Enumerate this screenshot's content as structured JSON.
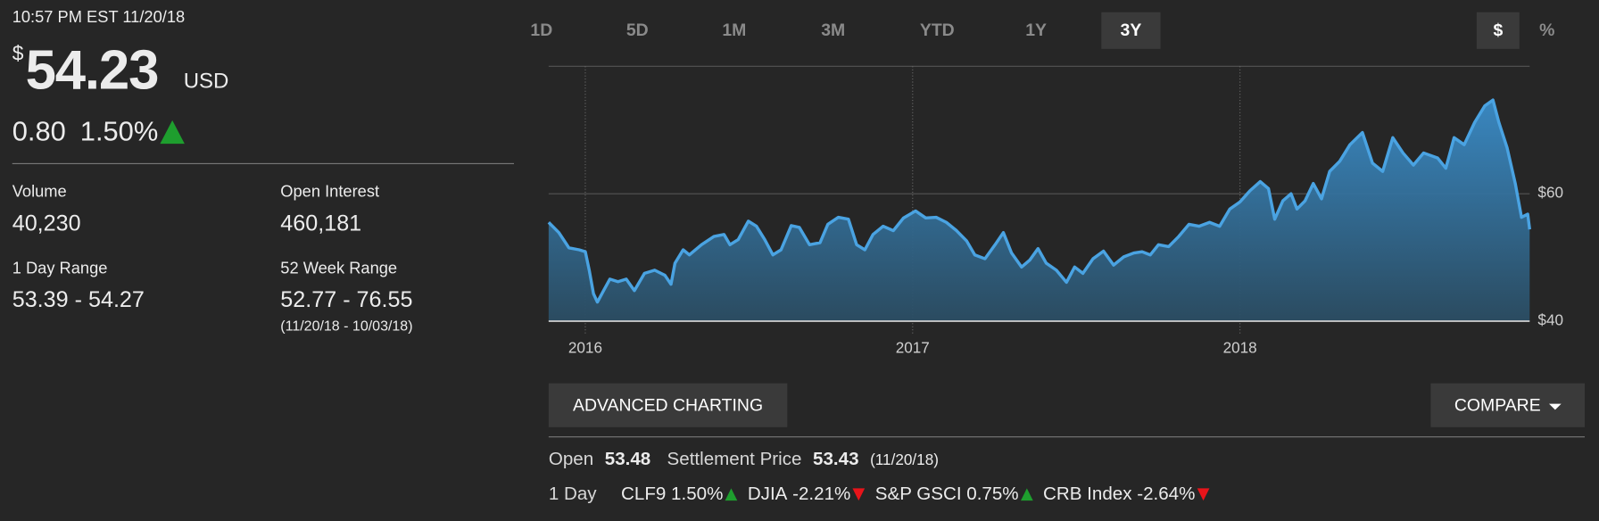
{
  "quote": {
    "timestamp": "10:57 PM EST 11/20/18",
    "currency_symbol": "$",
    "price": "54.23",
    "currency": "USD",
    "change": "0.80",
    "change_percent": "1.50%",
    "direction": "up"
  },
  "stats": [
    {
      "label": "Volume",
      "value": "40,230"
    },
    {
      "label": "Open Interest",
      "value": "460,181"
    },
    {
      "label": "1 Day Range",
      "value": "53.39 - 54.27"
    },
    {
      "label": "52 Week Range",
      "value": "52.77 - 76.55",
      "note": "(11/20/18 - 10/03/18)"
    }
  ],
  "range_tabs": {
    "items": [
      "1D",
      "5D",
      "1M",
      "3M",
      "YTD",
      "1Y",
      "3Y"
    ],
    "selected": 6
  },
  "unit_tabs": {
    "items": [
      "$",
      "%"
    ],
    "selected": 0
  },
  "chart_data": {
    "type": "area",
    "xlim": [
      2015.888,
      2018.885
    ],
    "xticks": [
      2016,
      2017,
      2018
    ],
    "ylim": [
      40,
      80
    ],
    "yticks": [
      {
        "value": 60,
        "label": "$60"
      },
      {
        "value": 40,
        "label": "$40"
      }
    ],
    "series": [
      {
        "color": "#4aa3e2",
        "x": [
          2015.888,
          2015.919,
          2015.95,
          2015.981,
          2016.0,
          2016.012,
          2016.025,
          2016.037,
          2016.056,
          2016.075,
          2016.1,
          2016.125,
          2016.15,
          2016.181,
          2016.212,
          2016.243,
          2016.262,
          2016.274,
          2016.299,
          2016.318,
          2016.355,
          2016.393,
          2016.424,
          2016.442,
          2016.467,
          2016.498,
          2016.523,
          2016.548,
          2016.573,
          2016.598,
          2016.629,
          2016.654,
          2016.685,
          2016.717,
          2016.741,
          2016.773,
          2016.804,
          2016.829,
          2016.854,
          2016.879,
          2016.91,
          2016.941,
          2016.972,
          2017.009,
          2017.04,
          2017.072,
          2017.103,
          2017.134,
          2017.165,
          2017.19,
          2017.221,
          2017.252,
          2017.277,
          2017.302,
          2017.333,
          2017.358,
          2017.383,
          2017.408,
          2017.439,
          2017.47,
          2017.495,
          2017.52,
          2017.551,
          2017.583,
          2017.614,
          2017.645,
          2017.676,
          2017.701,
          2017.726,
          2017.751,
          2017.782,
          2017.813,
          2017.844,
          2017.875,
          2017.907,
          2017.938,
          2017.969,
          2018.0,
          2018.031,
          2018.062,
          2018.087,
          2018.106,
          2018.131,
          2018.156,
          2018.174,
          2018.199,
          2018.224,
          2018.249,
          2018.274,
          2018.305,
          2018.336,
          2018.374,
          2018.405,
          2018.436,
          2018.467,
          2018.498,
          2018.53,
          2018.561,
          2018.604,
          2018.629,
          2018.654,
          2018.685,
          2018.717,
          2018.748,
          2018.773,
          2018.791,
          2018.816,
          2018.841,
          2018.86,
          2018.879,
          2018.885
        ],
        "values": [
          55.5,
          53.9,
          51.5,
          51.2,
          50.9,
          48.0,
          44.3,
          43.0,
          44.8,
          46.6,
          46.2,
          46.6,
          44.8,
          47.5,
          48.0,
          47.2,
          45.8,
          49.1,
          51.2,
          50.4,
          52.0,
          53.3,
          53.6,
          52.0,
          52.8,
          55.7,
          54.9,
          52.8,
          50.4,
          51.2,
          55.0,
          54.7,
          52.0,
          52.3,
          55.2,
          56.3,
          56.0,
          52.0,
          51.2,
          53.6,
          54.9,
          54.2,
          56.2,
          57.3,
          56.2,
          56.3,
          55.5,
          54.2,
          52.6,
          50.4,
          49.8,
          52.0,
          53.9,
          50.7,
          48.5,
          49.6,
          51.4,
          49.1,
          48.0,
          46.1,
          48.5,
          47.5,
          49.8,
          51.0,
          48.8,
          50.1,
          50.7,
          50.9,
          50.4,
          52.0,
          51.7,
          53.3,
          55.2,
          54.9,
          55.5,
          54.9,
          57.6,
          58.7,
          60.5,
          61.9,
          60.8,
          56.0,
          58.9,
          60.0,
          57.6,
          58.9,
          61.6,
          59.2,
          63.5,
          65.1,
          67.7,
          69.6,
          64.8,
          63.5,
          68.8,
          66.4,
          64.5,
          66.4,
          65.6,
          64.0,
          68.8,
          67.7,
          71.2,
          73.8,
          74.7,
          71.2,
          67.2,
          61.6,
          56.3,
          56.8,
          54.4
        ]
      }
    ]
  },
  "buttons": {
    "advanced": "ADVANCED CHARTING",
    "compare": "COMPARE"
  },
  "summary": {
    "open_label": "Open",
    "open": "53.48",
    "settlement_label": "Settlement Price",
    "settlement": "53.43",
    "settlement_date": "(11/20/18)"
  },
  "related": {
    "label": "1 Day",
    "items": [
      {
        "name": "CLF9",
        "change": "1.50%",
        "direction": "up"
      },
      {
        "name": "DJIA",
        "change": "-2.21%",
        "direction": "down"
      },
      {
        "name": "S&P GSCI",
        "change": "0.75%",
        "direction": "up"
      },
      {
        "name": "CRB Index",
        "change": "-2.64%",
        "direction": "down"
      }
    ]
  }
}
